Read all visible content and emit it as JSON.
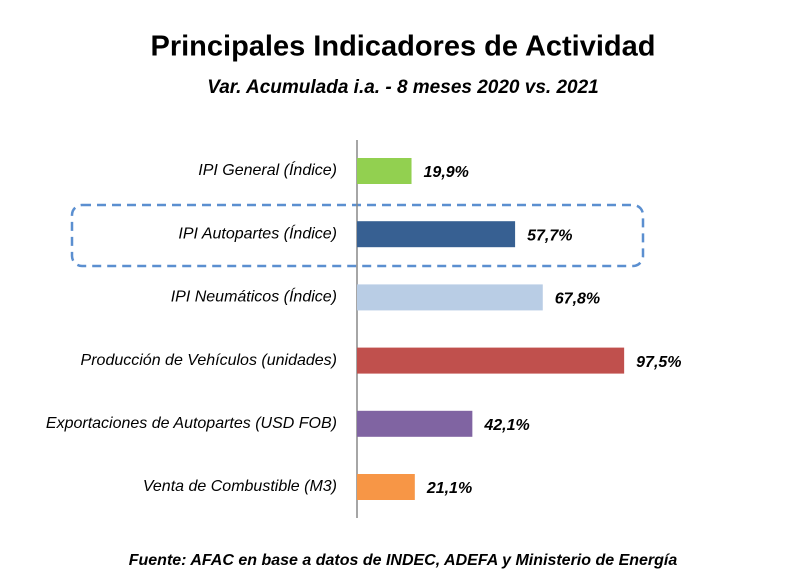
{
  "chart_data": {
    "type": "bar",
    "orientation": "horizontal",
    "title": "Principales Indicadores de Actividad",
    "subtitle": "Var. Acumulada i.a. - 8 meses 2020 vs. 2021",
    "categories": [
      "IPI General (Índice)",
      "IPI Autopartes (Índice)",
      "IPI Neumáticos (Índice)",
      "Producción de Vehículos (unidades)",
      "Exportaciones de Autopartes (USD FOB)",
      "Venta de Combustible (M3)"
    ],
    "values": [
      19.9,
      57.7,
      67.8,
      97.5,
      42.1,
      21.1
    ],
    "value_labels": [
      "19,9%",
      "57,7%",
      "67,8%",
      "97,5%",
      "42,1%",
      "21,1%"
    ],
    "colors": [
      "#92d050",
      "#376092",
      "#b9cde5",
      "#c0504d",
      "#8064a2",
      "#f79646"
    ],
    "source": "Fuente: AFAC en base a datos de INDEC, ADEFA y Ministerio de Energía"
  }
}
